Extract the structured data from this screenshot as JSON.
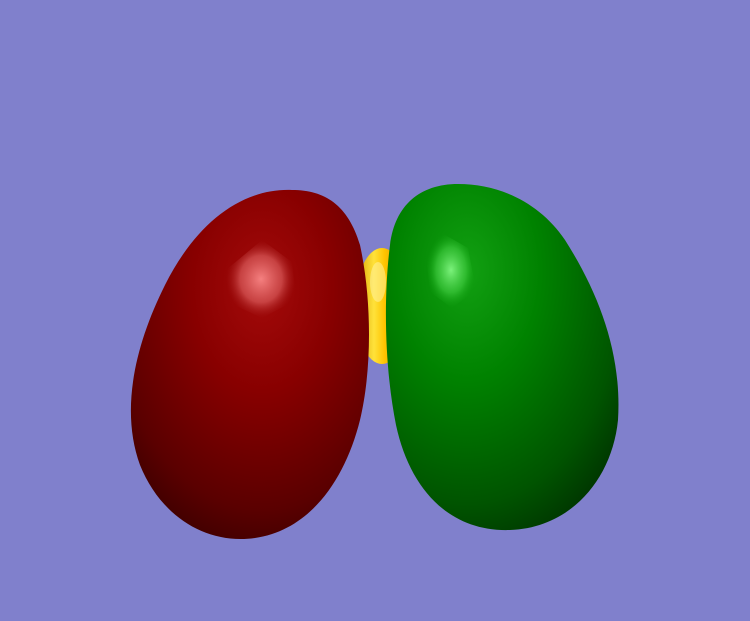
{
  "scene": {
    "subject": "p-orbital-isosurface",
    "colors": {
      "background": "#8080cc",
      "negative_lobe": "#7a0000",
      "negative_lobe_highlight": "#f07070",
      "positive_lobe": "#007a00",
      "positive_lobe_highlight": "#70f070",
      "nucleus": "#ffd21a"
    },
    "objects": [
      {
        "name": "red-lobe",
        "color_key": "negative_lobe"
      },
      {
        "name": "gold-atom-sphere",
        "color_key": "nucleus"
      },
      {
        "name": "green-lobe",
        "color_key": "positive_lobe"
      }
    ]
  }
}
